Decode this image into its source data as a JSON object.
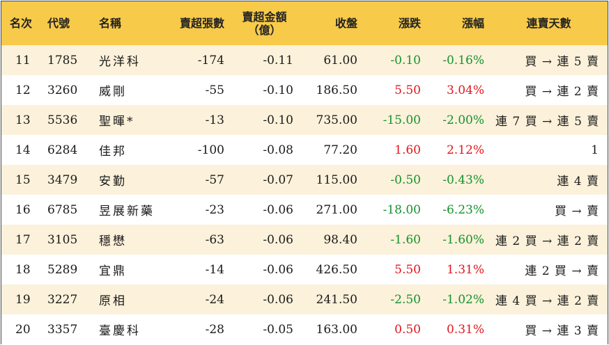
{
  "headers": {
    "rank": "名次",
    "code": "代號",
    "name": "名稱",
    "sell_shares": "賣超張數",
    "sell_amount_l1": "賣超金額",
    "sell_amount_l2": "（億）",
    "close": "收盤",
    "change": "漲跌",
    "change_pct": "漲幅",
    "streak": "連賣天數"
  },
  "rows": [
    {
      "rank": "11",
      "code": "1785",
      "name": "光洋科",
      "shares": "-174",
      "amount": "-0.11",
      "close": "61.00",
      "change": "-0.10",
      "pct": "-0.16%",
      "direction": "down",
      "streak": "買 → 連 5 賣"
    },
    {
      "rank": "12",
      "code": "3260",
      "name": "威剛",
      "shares": "-55",
      "amount": "-0.10",
      "close": "186.50",
      "change": "5.50",
      "pct": "3.04%",
      "direction": "up",
      "streak": "買 → 連 2 賣"
    },
    {
      "rank": "13",
      "code": "5536",
      "name": "聖暉*",
      "shares": "-13",
      "amount": "-0.10",
      "close": "735.00",
      "change": "-15.00",
      "pct": "-2.00%",
      "direction": "down",
      "streak": "連 7 買 → 連 5 賣"
    },
    {
      "rank": "14",
      "code": "6284",
      "name": "佳邦",
      "shares": "-100",
      "amount": "-0.08",
      "close": "77.20",
      "change": "1.60",
      "pct": "2.12%",
      "direction": "up",
      "streak": "1"
    },
    {
      "rank": "15",
      "code": "3479",
      "name": "安勤",
      "shares": "-57",
      "amount": "-0.07",
      "close": "115.00",
      "change": "-0.50",
      "pct": "-0.43%",
      "direction": "down",
      "streak": "連 4 賣"
    },
    {
      "rank": "16",
      "code": "6785",
      "name": "昱展新藥",
      "shares": "-23",
      "amount": "-0.06",
      "close": "271.00",
      "change": "-18.00",
      "pct": "-6.23%",
      "direction": "down",
      "streak": "買 → 賣"
    },
    {
      "rank": "17",
      "code": "3105",
      "name": "穩懋",
      "shares": "-63",
      "amount": "-0.06",
      "close": "98.40",
      "change": "-1.60",
      "pct": "-1.60%",
      "direction": "down",
      "streak": "連 2 買 → 連 2 賣"
    },
    {
      "rank": "18",
      "code": "5289",
      "name": "宜鼎",
      "shares": "-14",
      "amount": "-0.06",
      "close": "426.50",
      "change": "5.50",
      "pct": "1.31%",
      "direction": "up",
      "streak": "連 2 買 → 賣"
    },
    {
      "rank": "19",
      "code": "3227",
      "name": "原相",
      "shares": "-24",
      "amount": "-0.06",
      "close": "241.50",
      "change": "-2.50",
      "pct": "-1.02%",
      "direction": "down",
      "streak": "連 4 買 → 連 2 賣"
    },
    {
      "rank": "20",
      "code": "3357",
      "name": "臺慶科",
      "shares": "-28",
      "amount": "-0.05",
      "close": "163.00",
      "change": "0.50",
      "pct": "0.31%",
      "direction": "up",
      "streak": "買 → 連 3 賣"
    }
  ],
  "colors": {
    "header_bg": "#f7ca4a",
    "stripe_bg": "#fcf1da",
    "up": "#e0161e",
    "down": "#14932e"
  }
}
